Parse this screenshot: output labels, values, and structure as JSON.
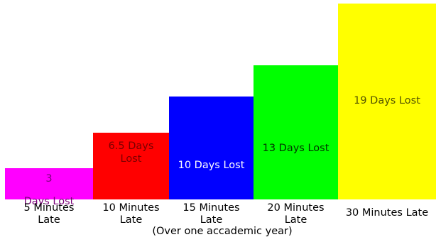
{
  "chart_data": {
    "type": "bar",
    "categories": [
      "5 Minutes Late",
      "10 Minutes Late",
      "15 Minutes Late",
      "20 Minutes Late",
      "30 Minutes Late"
    ],
    "values": [
      3,
      6.5,
      10,
      13,
      19
    ],
    "unit": "Days Lost",
    "bar_labels": [
      [
        "3",
        "Days Lost"
      ],
      [
        "6.5 Days",
        "Lost"
      ],
      [
        "10 Days Lost"
      ],
      [
        "13 Days Lost"
      ],
      [
        "19 Days Lost"
      ]
    ],
    "category_lines": [
      [
        "5 Minutes",
        "Late"
      ],
      [
        "10 Minutes",
        "Late"
      ],
      [
        "15 Minutes",
        "Late"
      ],
      [
        "20 Minutes",
        "Late"
      ],
      [
        "30 Minutes Late"
      ]
    ],
    "colors": [
      "#ff00ff",
      "#ff0000",
      "#0000ff",
      "#00ff00",
      "#ffff00"
    ],
    "label_colors": [
      "#7a007a",
      "#7a0000",
      "#ffffff",
      "#003300",
      "#555500"
    ],
    "note": "(Over one accademic year)",
    "grid": false,
    "legend": "none"
  }
}
